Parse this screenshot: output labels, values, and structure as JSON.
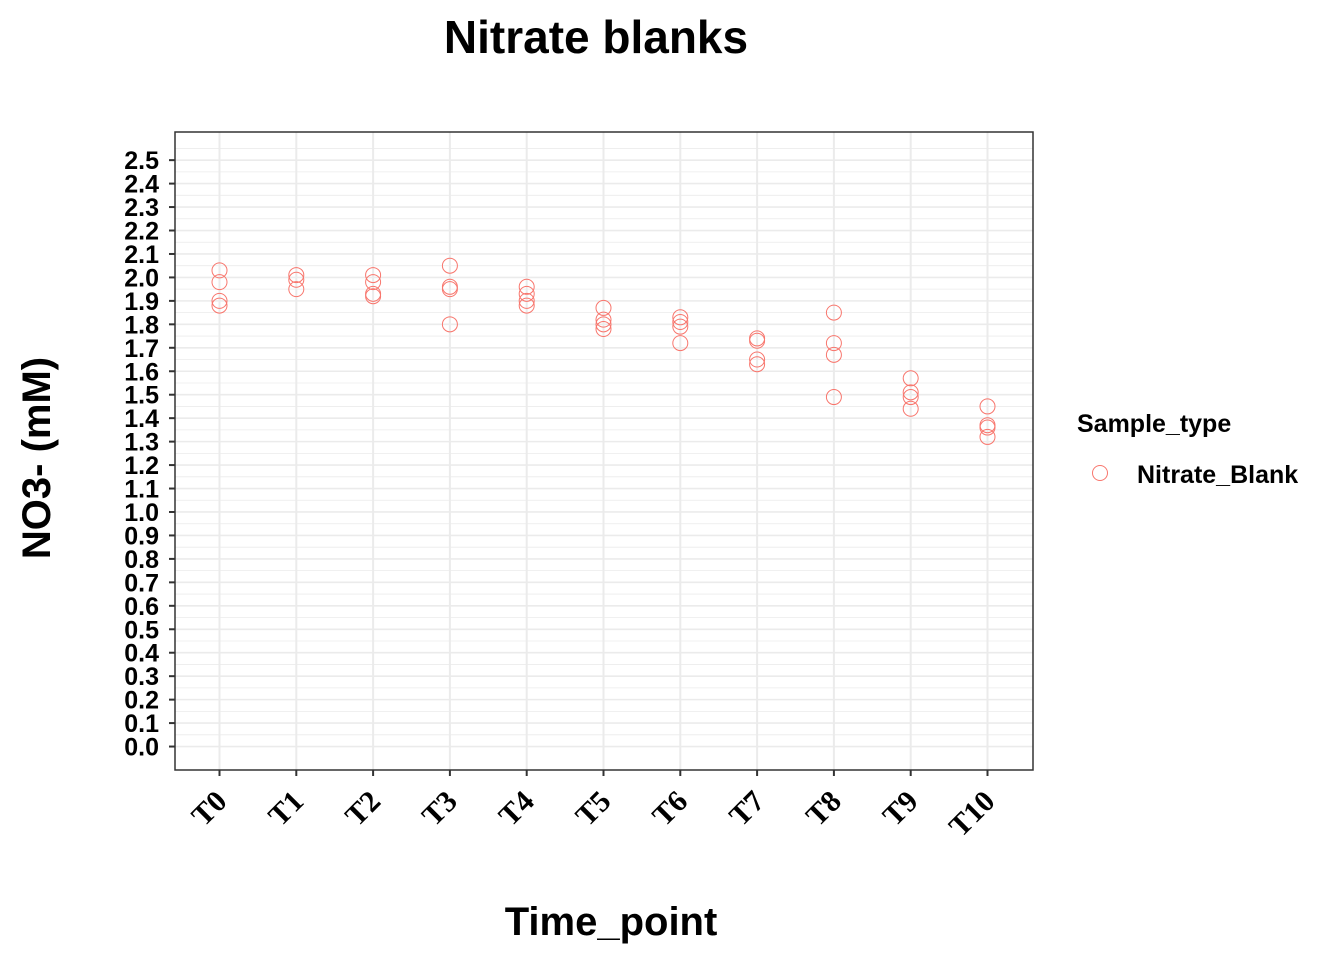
{
  "colors": {
    "point": "#F8766D",
    "grid": "#EBEBEB",
    "panel_border": "#333333",
    "axis_ticks": "#333333"
  },
  "chart_data": {
    "type": "scatter",
    "title": "Nitrate blanks",
    "xlabel": "Time_point",
    "ylabel": "NO3- (mM)",
    "categories": [
      "T0",
      "T1",
      "T2",
      "T3",
      "T4",
      "T5",
      "T6",
      "T7",
      "T8",
      "T9",
      "T10"
    ],
    "ylim": [
      -0.1,
      2.62
    ],
    "yticks": [
      "0.0",
      "0.1",
      "0.2",
      "0.3",
      "0.4",
      "0.5",
      "0.6",
      "0.7",
      "0.8",
      "0.9",
      "1.0",
      "1.1",
      "1.2",
      "1.3",
      "1.4",
      "1.5",
      "1.6",
      "1.7",
      "1.8",
      "1.9",
      "2.0",
      "2.1",
      "2.2",
      "2.3",
      "2.4",
      "2.5"
    ],
    "grid": true,
    "legend": {
      "title": "Sample_type",
      "position": "right",
      "entries": [
        "Nitrate_Blank"
      ]
    },
    "series": [
      {
        "name": "Nitrate_Blank",
        "points": [
          {
            "x": "T0",
            "y": 2.03
          },
          {
            "x": "T0",
            "y": 1.98
          },
          {
            "x": "T0",
            "y": 1.9
          },
          {
            "x": "T0",
            "y": 1.88
          },
          {
            "x": "T1",
            "y": 2.01
          },
          {
            "x": "T1",
            "y": 1.99
          },
          {
            "x": "T1",
            "y": 1.95
          },
          {
            "x": "T2",
            "y": 2.01
          },
          {
            "x": "T2",
            "y": 1.98
          },
          {
            "x": "T2",
            "y": 1.93
          },
          {
            "x": "T2",
            "y": 1.92
          },
          {
            "x": "T3",
            "y": 2.05
          },
          {
            "x": "T3",
            "y": 1.96
          },
          {
            "x": "T3",
            "y": 1.95
          },
          {
            "x": "T3",
            "y": 1.8
          },
          {
            "x": "T4",
            "y": 1.96
          },
          {
            "x": "T4",
            "y": 1.93
          },
          {
            "x": "T4",
            "y": 1.9
          },
          {
            "x": "T4",
            "y": 1.88
          },
          {
            "x": "T5",
            "y": 1.87
          },
          {
            "x": "T5",
            "y": 1.82
          },
          {
            "x": "T5",
            "y": 1.8
          },
          {
            "x": "T5",
            "y": 1.78
          },
          {
            "x": "T6",
            "y": 1.83
          },
          {
            "x": "T6",
            "y": 1.81
          },
          {
            "x": "T6",
            "y": 1.79
          },
          {
            "x": "T6",
            "y": 1.72
          },
          {
            "x": "T7",
            "y": 1.74
          },
          {
            "x": "T7",
            "y": 1.73
          },
          {
            "x": "T7",
            "y": 1.65
          },
          {
            "x": "T7",
            "y": 1.63
          },
          {
            "x": "T8",
            "y": 1.85
          },
          {
            "x": "T8",
            "y": 1.72
          },
          {
            "x": "T8",
            "y": 1.67
          },
          {
            "x": "T8",
            "y": 1.49
          },
          {
            "x": "T9",
            "y": 1.57
          },
          {
            "x": "T9",
            "y": 1.51
          },
          {
            "x": "T9",
            "y": 1.49
          },
          {
            "x": "T9",
            "y": 1.44
          },
          {
            "x": "T10",
            "y": 1.45
          },
          {
            "x": "T10",
            "y": 1.37
          },
          {
            "x": "T10",
            "y": 1.36
          },
          {
            "x": "T10",
            "y": 1.32
          }
        ]
      }
    ]
  }
}
